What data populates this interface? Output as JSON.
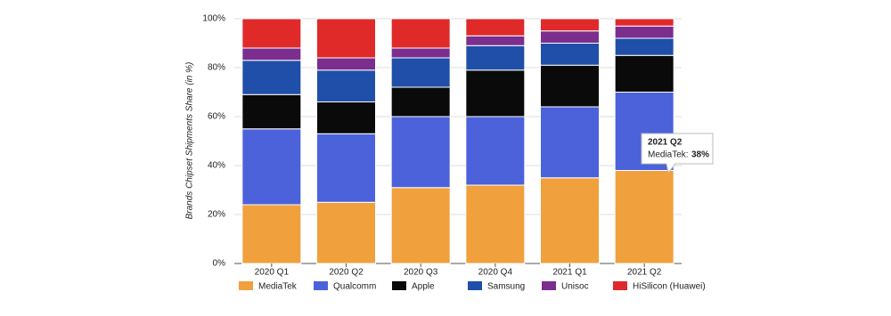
{
  "chart_data": {
    "type": "stacked_bar",
    "y_label": "Brands Chipset Shipments Share (in %)",
    "categories": [
      "2020 Q1",
      "2020 Q2",
      "2020 Q3",
      "2020 Q4",
      "2021 Q1",
      "2021 Q2"
    ],
    "series": [
      {
        "name": "MediaTek",
        "color": "#f0a03c",
        "values": [
          24,
          25,
          31,
          32,
          35,
          38
        ]
      },
      {
        "name": "Qualcomm",
        "color": "#4c62db",
        "values": [
          31,
          28,
          29,
          28,
          29,
          32
        ]
      },
      {
        "name": "Apple",
        "color": "#0a0a0a",
        "values": [
          14,
          13,
          12,
          19,
          17,
          15
        ]
      },
      {
        "name": "Samsung",
        "color": "#1f4fa8",
        "values": [
          14,
          13,
          12,
          10,
          9,
          7
        ]
      },
      {
        "name": "Unisoc",
        "color": "#7b2e8e",
        "values": [
          5,
          5,
          4,
          4,
          5,
          5
        ]
      },
      {
        "name": "HiSilicon (Huawei)",
        "color": "#e02a2a",
        "values": [
          12,
          16,
          12,
          7,
          5,
          3
        ]
      }
    ],
    "ylim": [
      0,
      100
    ],
    "yticks": [
      {
        "value": 0,
        "label": "0%"
      },
      {
        "value": 20,
        "label": "20%"
      },
      {
        "value": 40,
        "label": "40%"
      },
      {
        "value": 60,
        "label": "60%"
      },
      {
        "value": 80,
        "label": "80%"
      },
      {
        "value": 100,
        "label": "100%"
      }
    ],
    "grid": true,
    "legend": "bottom",
    "tooltip": {
      "label": "MediaTek:",
      "value_label": "38%"
    }
  }
}
